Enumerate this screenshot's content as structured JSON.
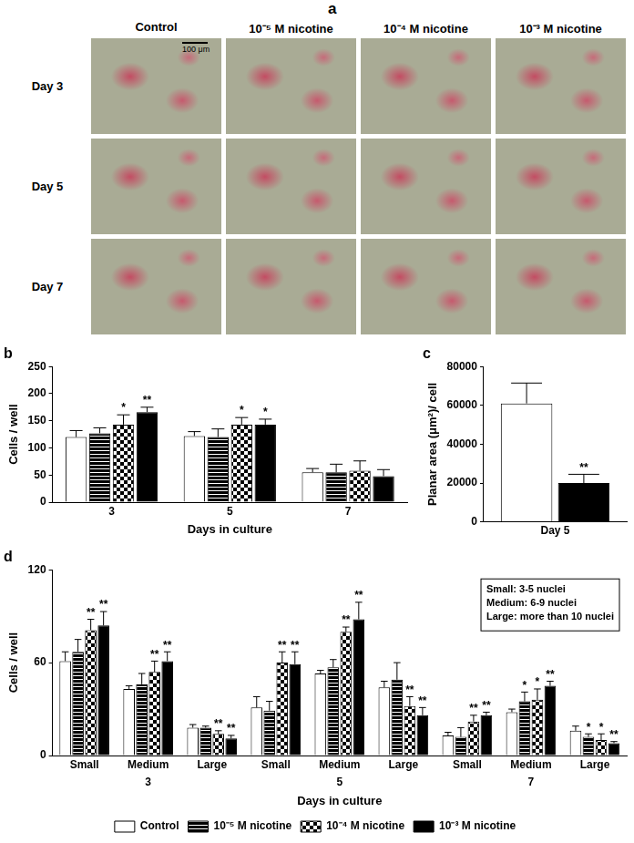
{
  "panel_a": {
    "label": "a",
    "columns": [
      "Control",
      "10⁻⁵ M nicotine",
      "10⁻⁴ M nicotine",
      "10⁻³ M nicotine"
    ],
    "rows": [
      "Day 3",
      "Day 5",
      "Day 7"
    ],
    "scale_bar": "100 μm"
  },
  "chart_data": [
    {
      "type": "bar",
      "title": "b",
      "categories": [
        "3",
        "5",
        "7"
      ],
      "x_label": "Days in culture",
      "y_label": "Cells / well",
      "ylim": [
        0,
        250
      ],
      "yticks": [
        0,
        50,
        100,
        150,
        200,
        250
      ],
      "grid": false,
      "series": [
        {
          "name": "Control",
          "color": "#ffffff",
          "values": [
            120,
            122,
            55
          ],
          "errors": [
            12,
            8,
            7
          ],
          "significance": [
            null,
            null,
            null
          ]
        },
        {
          "name": "10⁻⁵ M nicotine",
          "color": "#000000",
          "values": [
            127,
            120,
            55
          ],
          "errors": [
            10,
            15,
            15
          ],
          "significance": [
            null,
            null,
            null
          ]
        },
        {
          "name": "10⁻⁴ M nicotine",
          "color": "#000000",
          "values": [
            143,
            143,
            58
          ],
          "errors": [
            18,
            13,
            18
          ],
          "significance": [
            "*",
            "*",
            null
          ]
        },
        {
          "name": "10⁻³ M nicotine",
          "color": "#000000",
          "values": [
            166,
            143,
            48
          ],
          "errors": [
            9,
            10,
            12
          ],
          "significance": [
            "**",
            "*",
            null
          ]
        }
      ]
    },
    {
      "type": "bar",
      "title": "c",
      "categories": [
        "Day 5"
      ],
      "y_label": "Planar area (μm²)/ cell",
      "ylim": [
        0,
        80000
      ],
      "yticks": [
        0,
        20000,
        40000,
        60000,
        80000
      ],
      "grid": false,
      "series": [
        {
          "name": "Control",
          "color": "#ffffff",
          "values": [
            61000
          ],
          "errors": [
            10500
          ],
          "significance": [
            null
          ]
        },
        {
          "name": "10⁻⁵ M nicotine",
          "color": "#000000",
          "values": [
            null
          ],
          "errors": [
            null
          ],
          "significance": [
            null
          ]
        },
        {
          "name": "10⁻⁴ M nicotine",
          "color": "#000000",
          "values": [
            null
          ],
          "errors": [
            null
          ],
          "significance": [
            null
          ]
        },
        {
          "name": "10⁻³ M nicotine",
          "color": "#000000",
          "values": [
            20000
          ],
          "errors": [
            4500
          ],
          "significance": [
            "**"
          ]
        }
      ]
    },
    {
      "type": "bar",
      "title": "d",
      "categories": [
        "Small",
        "Medium",
        "Large",
        "Small",
        "Medium",
        "Large",
        "Small",
        "Medium",
        "Large"
      ],
      "groups": [
        "3",
        "3",
        "3",
        "5",
        "5",
        "5",
        "7",
        "7",
        "7"
      ],
      "x_label": "Days in culture",
      "y_label": "Cells / well",
      "ylim": [
        0,
        120
      ],
      "yticks": [
        0,
        60,
        120
      ],
      "grid": false,
      "legend": "bottom",
      "annotations": [
        "Small: 3-5 nuclei",
        "Medium: 6-9 nuclei",
        "Large: more than 10 nuclei"
      ],
      "series": [
        {
          "name": "Control",
          "color": "#ffffff",
          "values": [
            61,
            43,
            18,
            31,
            53,
            44,
            13,
            28,
            16
          ],
          "errors": [
            6,
            2,
            2,
            7,
            2,
            4,
            2,
            2,
            3
          ],
          "significance": [
            null,
            null,
            null,
            null,
            null,
            null,
            null,
            null,
            null
          ]
        },
        {
          "name": "10⁻⁵ M nicotine",
          "color": "#000000",
          "values": [
            67,
            46,
            18,
            29,
            57,
            49,
            12,
            35,
            12
          ],
          "errors": [
            8,
            7,
            1,
            6,
            5,
            11,
            6,
            6,
            2
          ],
          "significance": [
            null,
            null,
            null,
            null,
            null,
            null,
            null,
            "*",
            "*"
          ]
        },
        {
          "name": "10⁻⁴ M nicotine",
          "color": "#000000",
          "values": [
            81,
            54,
            14,
            60,
            80,
            32,
            22,
            36,
            10
          ],
          "errors": [
            7,
            7,
            2,
            7,
            3,
            6,
            4,
            7,
            4
          ],
          "significance": [
            "**",
            "**",
            "**",
            "**",
            "**",
            "**",
            "**",
            "*",
            "*"
          ]
        },
        {
          "name": "10⁻³ M nicotine",
          "color": "#000000",
          "values": [
            84,
            61,
            11,
            59,
            88,
            26,
            26,
            45,
            8
          ],
          "errors": [
            9,
            6,
            2,
            8,
            11,
            5,
            2,
            3,
            1
          ],
          "significance": [
            "**",
            "**",
            "**",
            "**",
            "**",
            "**",
            "**",
            "**",
            "**"
          ]
        }
      ]
    }
  ]
}
